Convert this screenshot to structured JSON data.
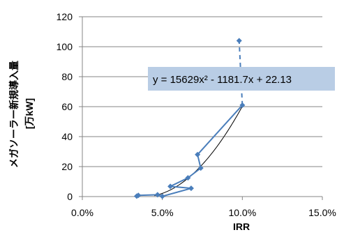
{
  "chart_data": {
    "type": "scatter",
    "xlabel": "IRR",
    "ylabel": "メガソーラー新規導入量",
    "ylabel_unit": "[万kW]",
    "xlim": [
      0,
      0.15
    ],
    "ylim": [
      0,
      120
    ],
    "x_ticks": [
      {
        "value": 0.0,
        "label": "0.0%"
      },
      {
        "value": 0.05,
        "label": "5.0%"
      },
      {
        "value": 0.1,
        "label": "10.0%"
      },
      {
        "value": 0.15,
        "label": "15.0%"
      }
    ],
    "y_ticks": [
      {
        "value": 0,
        "label": "0"
      },
      {
        "value": 20,
        "label": "20"
      },
      {
        "value": 40,
        "label": "40"
      },
      {
        "value": 60,
        "label": "60"
      },
      {
        "value": 80,
        "label": "80"
      },
      {
        "value": 100,
        "label": "100"
      },
      {
        "value": 120,
        "label": "120"
      }
    ],
    "grid": "horizontal",
    "series": [
      {
        "line_color": "#4a7ebb",
        "marker_color": "#4a7ebb",
        "points": [
          {
            "x": 0.034,
            "y": 0.3
          },
          {
            "x": 0.035,
            "y": 0.8
          },
          {
            "x": 0.047,
            "y": 1.2
          },
          {
            "x": 0.05,
            "y": 0.2
          },
          {
            "x": 0.068,
            "y": 5.5
          },
          {
            "x": 0.055,
            "y": 6.8
          },
          {
            "x": 0.066,
            "y": 12.5
          },
          {
            "x": 0.074,
            "y": 19.0
          },
          {
            "x": 0.072,
            "y": 28.0
          },
          {
            "x": 0.1,
            "y": 61.0
          }
        ],
        "dashed_extension": {
          "x": 0.098,
          "y": 104.0
        }
      }
    ],
    "trendline": {
      "type": "polynomial",
      "coefficients": {
        "a": 15629,
        "b": -1181.7,
        "c": 22.13
      },
      "color": "#000000",
      "x_range": [
        0.045,
        0.1
      ]
    },
    "equation_label": "y = 15629x² - 1181.7x + 22.13",
    "equation_box_color": "#b9cde5"
  }
}
